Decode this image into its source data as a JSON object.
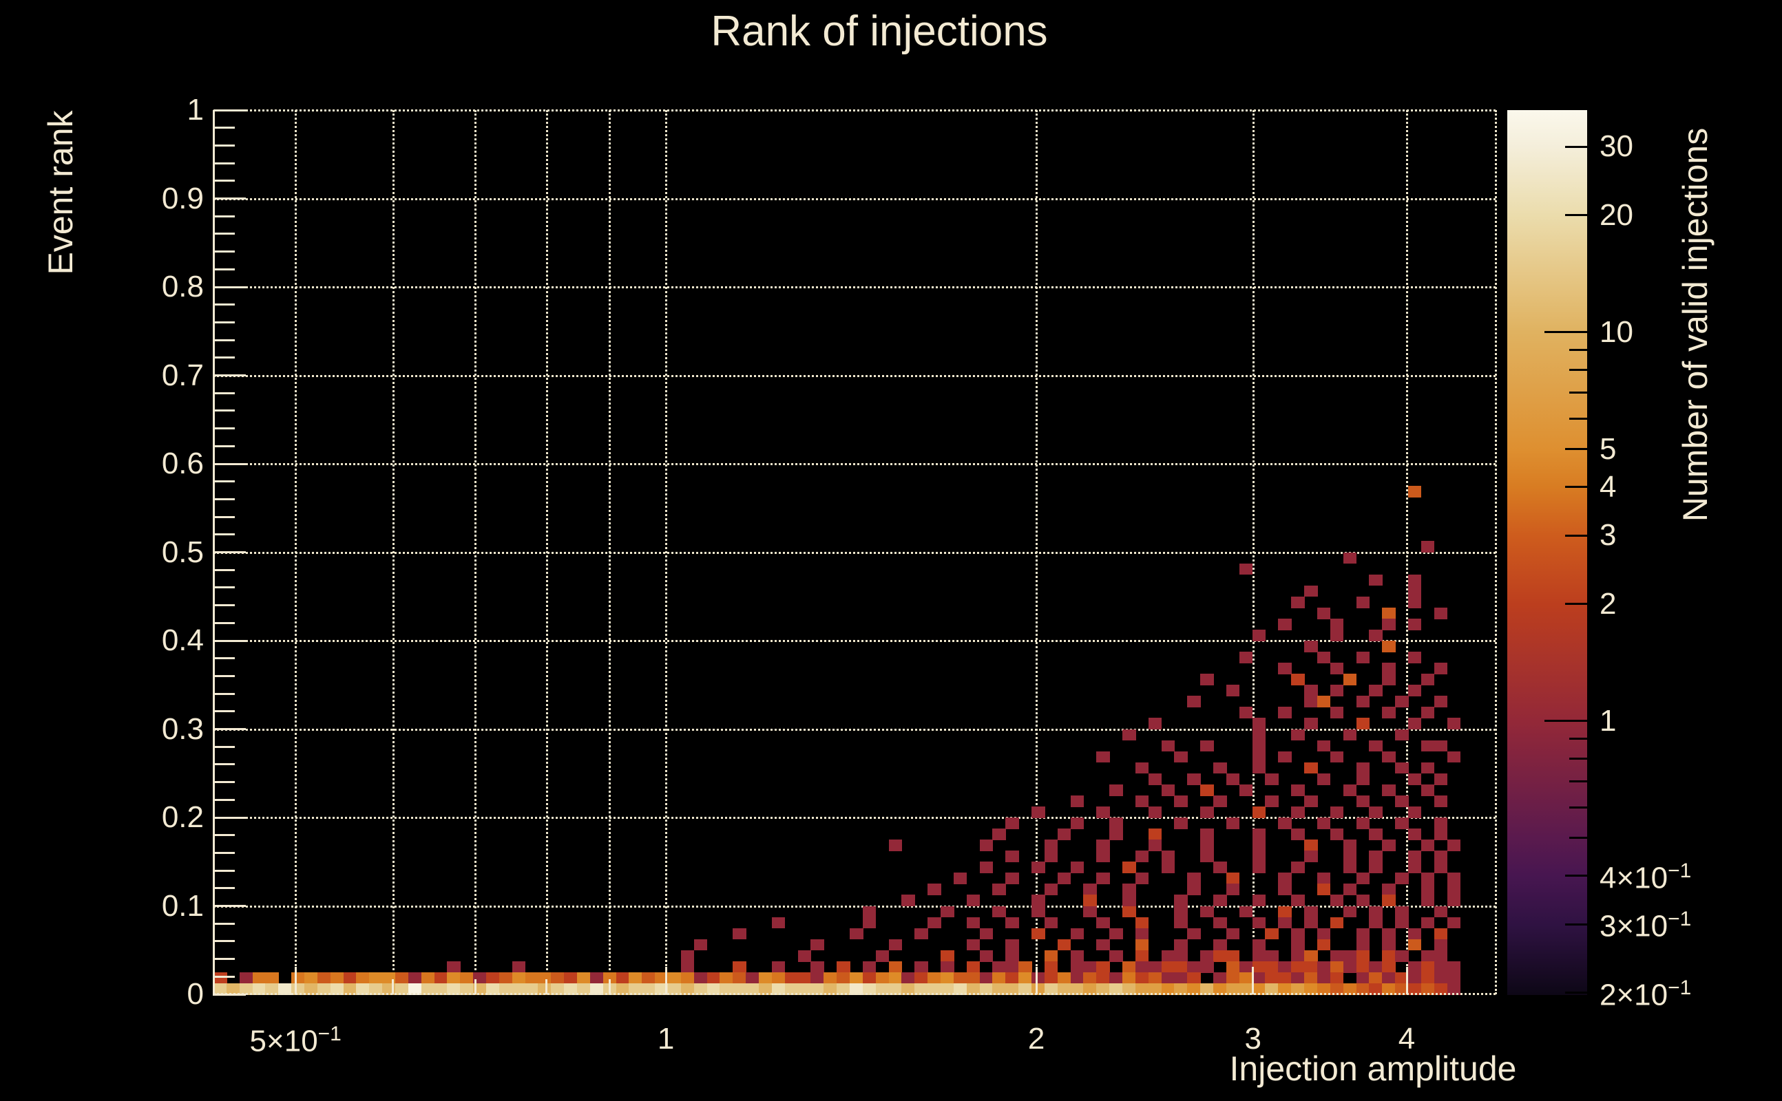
{
  "title": "Rank of injections",
  "colors": {
    "background": "#000000",
    "text": "#F3EAD3",
    "grid": "#EFE6CC",
    "axis": "#F3EAD3",
    "colorbar_tick": "#000000"
  },
  "chart_data": {
    "type": "heatmap",
    "title": "Rank of injections",
    "xlabel": "Injection amplitude",
    "ylabel": "Event rank",
    "zlabel": "Number of valid injections",
    "x_scale": "log",
    "x_range": [
      0.4288,
      4.723
    ],
    "y_scale": "linear",
    "y_range": [
      0,
      1
    ],
    "z_scale": "log",
    "z_range": [
      0.198,
      37.3
    ],
    "grid": true,
    "x_major_ticks": [
      {
        "value": 0.5,
        "base": "5×10",
        "exp": "−1"
      },
      {
        "value": 1,
        "base": "1"
      },
      {
        "value": 2,
        "base": "2"
      },
      {
        "value": 3,
        "base": "3"
      },
      {
        "value": 4,
        "base": "4"
      }
    ],
    "x_medium_ticks": [
      0.6,
      0.7,
      0.8,
      0.9
    ],
    "x_gridlines": [
      0.5,
      0.6,
      0.7,
      0.8,
      0.9,
      1,
      2,
      3,
      4
    ],
    "y_ticks": [
      {
        "value": 0,
        "label": "0"
      },
      {
        "value": 0.1,
        "label": "0.1"
      },
      {
        "value": 0.2,
        "label": "0.2"
      },
      {
        "value": 0.3,
        "label": "0.3"
      },
      {
        "value": 0.4,
        "label": "0.4"
      },
      {
        "value": 0.5,
        "label": "0.5"
      },
      {
        "value": 0.6,
        "label": "0.6"
      },
      {
        "value": 0.7,
        "label": "0.7"
      },
      {
        "value": 0.8,
        "label": "0.8"
      },
      {
        "value": 0.9,
        "label": "0.9"
      },
      {
        "value": 1,
        "label": "1"
      }
    ],
    "y_minor_step": 0.02,
    "y_gridlines": [
      0.1,
      0.2,
      0.3,
      0.4,
      0.5,
      0.6,
      0.7,
      0.8,
      0.9
    ],
    "colorbar_ticks": [
      {
        "value": 30,
        "base": "30"
      },
      {
        "value": 20,
        "base": "20"
      },
      {
        "value": 10,
        "base": "10",
        "decade": true
      },
      {
        "value": 5,
        "base": "5"
      },
      {
        "value": 4,
        "base": "4"
      },
      {
        "value": 3,
        "base": "3"
      },
      {
        "value": 2,
        "base": "2"
      },
      {
        "value": 1,
        "base": "1",
        "decade": true
      },
      {
        "value": 0.4,
        "base": "4×10",
        "exp": "−1"
      },
      {
        "value": 0.3,
        "base": "3×10",
        "exp": "−1"
      },
      {
        "value": 0.2,
        "base": "2×10",
        "exp": "−1"
      }
    ],
    "colorbar_minor_ticks": [
      9,
      8,
      7,
      6,
      0.9,
      0.8,
      0.7,
      0.6,
      0.5
    ],
    "colorbar_stops": [
      {
        "pos": 0,
        "color": "#FBF8EC"
      },
      {
        "pos": 4.2,
        "color": "#F4EEDA"
      },
      {
        "pos": 11.9,
        "color": "#EBDCAC"
      },
      {
        "pos": 25.1,
        "color": "#E0B260"
      },
      {
        "pos": 38.4,
        "color": "#DE8F30"
      },
      {
        "pos": 42.6,
        "color": "#D87C22"
      },
      {
        "pos": 48.1,
        "color": "#CE5C1D"
      },
      {
        "pos": 55.9,
        "color": "#BC3E1E"
      },
      {
        "pos": 69.1,
        "color": "#932838"
      },
      {
        "pos": 82.3,
        "color": "#5A1A4E"
      },
      {
        "pos": 86.6,
        "color": "#471650"
      },
      {
        "pos": 92.1,
        "color": "#2F1242"
      },
      {
        "pos": 100,
        "color": "#0D0716"
      }
    ],
    "heatmap": {
      "bins_x": 96,
      "x_min": 0.4288,
      "x_max": 4.419,
      "row_height_units": 0.0125,
      "palette": {
        "1": "#932838",
        "2": "#BE3E1E",
        "3": "#CC5A1C",
        "4": "#D8771F",
        "5": "#DE8B28",
        "6": "#DFA044",
        "7": "#E2B666",
        "8": "#E7CC8D",
        "9": "#EDDCAB",
        "a": "#F3E9CB",
        "b": "#F9F4E4"
      },
      "palette_counts": {
        "1": 1,
        "2": 2,
        "3": 3,
        "4": 4,
        "5": 6,
        "6": 9,
        "7": 13,
        "8": 18,
        "9": 24,
        "a": 30,
        "b": 34
      },
      "rows_top_to_bottom": [
        "............................................................................................3...",
        "................................................................................................",
        "................................................................................................",
        "................................................................................................",
        "................................................................................................",
        ".............................................................................................1..",
        ".......................................................................................1........",
        "...............................................................................1................",
        ".........................................................................................1..1...",
        "....................................................................................1.......1...",
        "...................................................................................1....1...1...",
        ".....................................................................................1....3...1.",
        "..................................................................................1...1...1.1..",
        "................................................................................1.....1..1......",
        "....................................................................................1.....3.....",
        "...............................................................................1.....1..1...1...",
        "..................................................................................1...1...1...1",
        "............................................................................1......2...3..1..1..",
        "..............................................................................1.....1.1..1..1...",
        "...........................................................................1........13..1..1..1.",
        "...............................................................................1..1...1...1..1..",
        "........................................................................1.......1...1...2...1..1",
        "......................................................................1.........1..1...1...1....",
        ".........................................................................1..1...1....1...1...11.",
        "....................................................................1.....1.....1.1...1...1....1",
        ".......................................................................1.....1..1...2...1..1.1..",
        "........................................................................1..1..1..1...1..1...1.1.",
        ".....................................................................1...1..2..1...1...1..1..1..",
        "..................................................................1....1..1..1...1..1...1..1..1.",
        "...............................................................1....1...1...1...2..1..1..1..1...",
        ".............................................................1....1..1....1...1...1..1..1..1..1.",
        "............................................................1....1...1..2...1...1..1..1..1..1.1",
        "....................................................1......1....1...1...1...1...1...2..1..1..1.1.",
        ".............................................................1..1...1..1.1..1...1...1..1.1..1.1",
        "...........................................................1...1..1...2..1...1..1..1...1.1..1.1.",
        ".........................................................1...1...1..1..1...1..2...1..1..1..1.1.1",
        ".......................................................1....1...1..1..1....1..1...1..2.1..1..1.1.",
        ".....................................................1....1....1...2..1...1..1..1..1..1.1.2..1.1",
        "..................................................1.....1...1..1...1..2...1.1..1..2.1..1.1.1..1.",
        "...........................................1......1....1..1..1..1...1..2..1..1..1.1.1.2..1.1.1.1",
        "........................................1........1....1....1...2..1..1.1...1..1..2.1.1..1.1.1.2.1.",
        ".....................................1........1.....1.....1..1...2..1..3..1..1..1..1.2..1.1.3.1.1.1",
        "....................................1........1.....1....2..1.1..3.1..1.2.11.122.11.13.112.21.11.",
        "..................1....1............1...2..1..1.2.1.3.1.1.2.113.2.112.3112211.3122122131212.1211",
        "2.144.4534245531425412354432514253454124315422143524512453314251241321423112.1341221312.13121211",
        "87898a87897987 8b8898798887898a878898789888798887 8a9887888978778687767876656575665756543432432321"
      ]
    }
  },
  "labels": {
    "x_axis_title": "Injection amplitude",
    "y_axis_title": "Event rank",
    "colorbar_title": "Number of valid injections"
  }
}
